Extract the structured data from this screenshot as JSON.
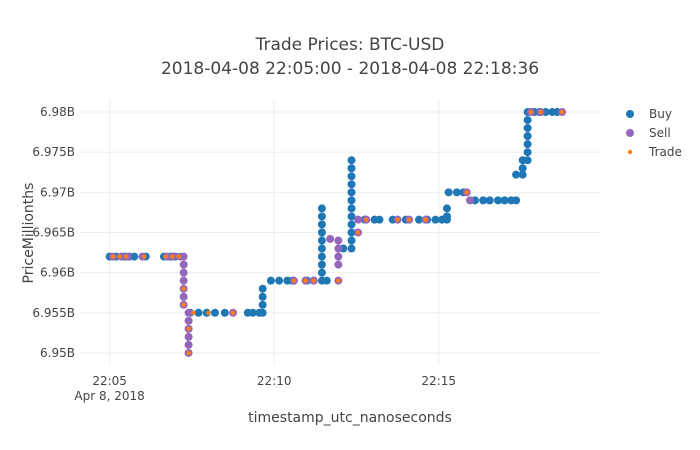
{
  "chart_data": {
    "type": "scatter",
    "title": "Trade Prices: BTC-USD",
    "subtitle": "2018-04-08 22:05:00 - 2018-04-08 22:18:36",
    "xlabel": "timestamp_utc_nanoseconds",
    "ylabel": "PriceMillionths",
    "x_unit": "minutes after 22:00 on Apr 8, 2018",
    "xlim": [
      21.1,
      24.9
    ],
    "ylim": [
      6.9485,
      6.9815
    ],
    "x_ticks": [
      {
        "value": 5,
        "label": "22:05",
        "sublabel": "Apr 8, 2018"
      },
      {
        "value": 10,
        "label": "22:10",
        "sublabel": ""
      },
      {
        "value": 15,
        "label": "22:15",
        "sublabel": ""
      }
    ],
    "y_ticks": [
      {
        "value": 6.95,
        "label": "6.95B"
      },
      {
        "value": 6.955,
        "label": "6.955B"
      },
      {
        "value": 6.96,
        "label": "6.96B"
      },
      {
        "value": 6.965,
        "label": "6.965B"
      },
      {
        "value": 6.97,
        "label": "6.97B"
      },
      {
        "value": 6.975,
        "label": "6.975B"
      },
      {
        "value": 6.98,
        "label": "6.98B"
      }
    ],
    "grid": true,
    "legend_position": "top-right",
    "series": [
      {
        "name": "Buy",
        "color": "#1f77b4",
        "marker": "circle",
        "points": [
          [
            5.0,
            6.962
          ],
          [
            5.2,
            6.962
          ],
          [
            5.45,
            6.962
          ],
          [
            5.6,
            6.962
          ],
          [
            5.75,
            6.962
          ],
          [
            6.1,
            6.962
          ],
          [
            6.65,
            6.962
          ],
          [
            6.85,
            6.962
          ],
          [
            7.0,
            6.962
          ],
          [
            7.45,
            6.955
          ],
          [
            7.7,
            6.955
          ],
          [
            7.95,
            6.955
          ],
          [
            8.2,
            6.955
          ],
          [
            8.5,
            6.955
          ],
          [
            9.2,
            6.955
          ],
          [
            9.35,
            6.955
          ],
          [
            9.55,
            6.955
          ],
          [
            9.65,
            6.955
          ],
          [
            9.65,
            6.956
          ],
          [
            9.65,
            6.957
          ],
          [
            9.65,
            6.958
          ],
          [
            9.9,
            6.959
          ],
          [
            10.15,
            6.959
          ],
          [
            10.4,
            6.959
          ],
          [
            10.55,
            6.959
          ],
          [
            11.0,
            6.959
          ],
          [
            11.2,
            6.959
          ],
          [
            11.45,
            6.959
          ],
          [
            11.6,
            6.959
          ],
          [
            11.45,
            6.96
          ],
          [
            11.45,
            6.961
          ],
          [
            11.45,
            6.962
          ],
          [
            11.45,
            6.963
          ],
          [
            11.45,
            6.964
          ],
          [
            11.45,
            6.965
          ],
          [
            11.45,
            6.966
          ],
          [
            11.45,
            6.967
          ],
          [
            11.45,
            6.968
          ],
          [
            12.1,
            6.963
          ],
          [
            12.35,
            6.963
          ],
          [
            12.35,
            6.964
          ],
          [
            12.35,
            6.965
          ],
          [
            12.35,
            6.966
          ],
          [
            12.35,
            6.967
          ],
          [
            12.35,
            6.968
          ],
          [
            12.35,
            6.969
          ],
          [
            12.35,
            6.97
          ],
          [
            12.35,
            6.971
          ],
          [
            12.35,
            6.972
          ],
          [
            12.35,
            6.973
          ],
          [
            12.35,
            6.974
          ],
          [
            12.75,
            6.9666
          ],
          [
            13.05,
            6.9666
          ],
          [
            13.2,
            6.9666
          ],
          [
            13.6,
            6.9666
          ],
          [
            14.0,
            6.9666
          ],
          [
            14.4,
            6.9666
          ],
          [
            14.65,
            6.9666
          ],
          [
            14.9,
            6.9666
          ],
          [
            15.1,
            6.9666
          ],
          [
            15.25,
            6.9666
          ],
          [
            15.25,
            6.967
          ],
          [
            15.25,
            6.968
          ],
          [
            15.3,
            6.97
          ],
          [
            15.55,
            6.97
          ],
          [
            15.75,
            6.97
          ],
          [
            16.1,
            6.969
          ],
          [
            16.35,
            6.969
          ],
          [
            16.55,
            6.969
          ],
          [
            16.8,
            6.969
          ],
          [
            17.0,
            6.969
          ],
          [
            17.2,
            6.969
          ],
          [
            17.35,
            6.969
          ],
          [
            17.35,
            6.9722
          ],
          [
            17.55,
            6.9722
          ],
          [
            17.55,
            6.973
          ],
          [
            17.55,
            6.974
          ],
          [
            17.7,
            6.974
          ],
          [
            17.7,
            6.975
          ],
          [
            17.7,
            6.976
          ],
          [
            17.7,
            6.977
          ],
          [
            17.7,
            6.978
          ],
          [
            17.7,
            6.979
          ],
          [
            17.7,
            6.98
          ],
          [
            17.9,
            6.98
          ],
          [
            18.05,
            6.98
          ],
          [
            18.25,
            6.98
          ],
          [
            18.45,
            6.98
          ],
          [
            18.6,
            6.98
          ]
        ]
      },
      {
        "name": "Sell",
        "color": "#9467bd",
        "marker": "circle",
        "points": [
          [
            5.1,
            6.962
          ],
          [
            5.35,
            6.962
          ],
          [
            5.55,
            6.962
          ],
          [
            6.0,
            6.962
          ],
          [
            6.75,
            6.962
          ],
          [
            6.95,
            6.962
          ],
          [
            7.15,
            6.962
          ],
          [
            7.25,
            6.962
          ],
          [
            7.25,
            6.961
          ],
          [
            7.25,
            6.96
          ],
          [
            7.25,
            6.959
          ],
          [
            7.25,
            6.958
          ],
          [
            7.25,
            6.957
          ],
          [
            7.25,
            6.956
          ],
          [
            7.4,
            6.955
          ],
          [
            7.4,
            6.954
          ],
          [
            7.4,
            6.953
          ],
          [
            7.4,
            6.952
          ],
          [
            7.4,
            6.951
          ],
          [
            7.4,
            6.95
          ],
          [
            8.75,
            6.955
          ],
          [
            10.6,
            6.959
          ],
          [
            10.95,
            6.959
          ],
          [
            11.2,
            6.959
          ],
          [
            11.7,
            6.9642
          ],
          [
            11.95,
            6.961
          ],
          [
            11.95,
            6.962
          ],
          [
            11.95,
            6.963
          ],
          [
            11.95,
            6.964
          ],
          [
            11.95,
            6.959
          ],
          [
            12.55,
            6.965
          ],
          [
            12.55,
            6.9666
          ],
          [
            12.8,
            6.9666
          ],
          [
            13.75,
            6.9666
          ],
          [
            14.1,
            6.9666
          ],
          [
            14.6,
            6.9666
          ],
          [
            15.85,
            6.97
          ],
          [
            15.95,
            6.969
          ],
          [
            17.8,
            6.98
          ],
          [
            18.1,
            6.98
          ],
          [
            18.75,
            6.98
          ]
        ]
      },
      {
        "name": "Trade",
        "color": "#ff7f0e",
        "marker": "small-dot",
        "points": [
          [
            5.1,
            6.962
          ],
          [
            5.3,
            6.962
          ],
          [
            5.5,
            6.962
          ],
          [
            6.05,
            6.962
          ],
          [
            6.7,
            6.962
          ],
          [
            6.9,
            6.962
          ],
          [
            7.1,
            6.962
          ],
          [
            7.25,
            6.958
          ],
          [
            7.25,
            6.956
          ],
          [
            7.4,
            6.953
          ],
          [
            7.4,
            6.95
          ],
          [
            7.55,
            6.955
          ],
          [
            8.0,
            6.955
          ],
          [
            8.75,
            6.955
          ],
          [
            10.6,
            6.959
          ],
          [
            10.95,
            6.959
          ],
          [
            11.2,
            6.959
          ],
          [
            11.95,
            6.959
          ],
          [
            12.55,
            6.965
          ],
          [
            12.8,
            6.9666
          ],
          [
            13.75,
            6.9666
          ],
          [
            14.1,
            6.9666
          ],
          [
            14.6,
            6.9666
          ],
          [
            15.85,
            6.97
          ],
          [
            17.8,
            6.98
          ],
          [
            18.1,
            6.98
          ],
          [
            18.75,
            6.98
          ]
        ]
      }
    ]
  }
}
